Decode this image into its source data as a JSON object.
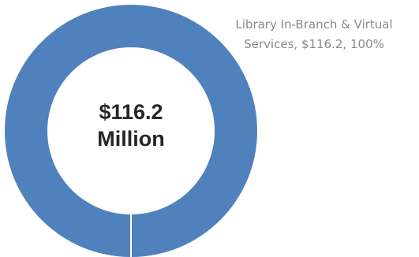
{
  "chart_data": {
    "type": "pie",
    "donut": true,
    "center_label": [
      "$116.2",
      "Million"
    ],
    "series": [
      {
        "name": "Library In-Branch & Virtual Services",
        "values": [
          116.2
        ]
      }
    ],
    "categories": [
      "Library In-Branch & Virtual Services"
    ],
    "values": [
      116.2
    ],
    "percentages": [
      100
    ],
    "data_labels": [
      "Library In-Branch & Virtual",
      "Services, $116.2, 100%"
    ],
    "colors": {
      "slice": "#4F81BD",
      "center": "#FFFFFF",
      "center_text": "#262626",
      "label_text": "#8A8A8A"
    }
  }
}
